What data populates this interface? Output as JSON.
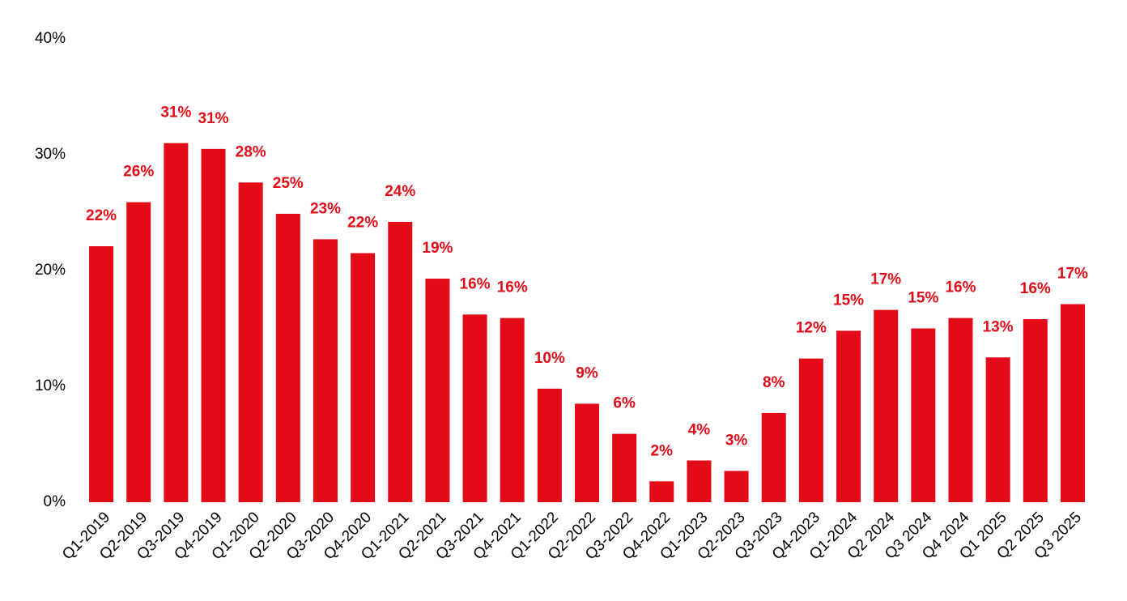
{
  "chart_data": {
    "type": "bar",
    "categories": [
      "Q1-2019",
      "Q2-2019",
      "Q3-2019",
      "Q4-2019",
      "Q1-2020",
      "Q2-2020",
      "Q3-2020",
      "Q4-2020",
      "Q1-2021",
      "Q2-2021",
      "Q3-2021",
      "Q4-2021",
      "Q1-2022",
      "Q2-2022",
      "Q3-2022",
      "Q4-2022",
      "Q1-2023",
      "Q2-2023",
      "Q3-2023",
      "Q4-2023",
      "Q1-2024",
      "Q2 2024",
      "Q3 2024",
      "Q4 2024",
      "Q1 2025",
      "Q2 2025",
      "Q3 2025"
    ],
    "values": [
      22.1,
      25.9,
      31.0,
      30.5,
      27.6,
      24.9,
      22.7,
      21.5,
      24.2,
      19.3,
      16.2,
      15.9,
      9.8,
      8.5,
      5.9,
      1.8,
      3.6,
      2.7,
      7.7,
      12.4,
      14.8,
      16.6,
      15.0,
      15.9,
      12.5,
      15.8,
      17.1
    ],
    "value_labels": [
      "22%",
      "26%",
      "31%",
      "31%",
      "28%",
      "25%",
      "23%",
      "22%",
      "24%",
      "19%",
      "16%",
      "16%",
      "10%",
      "9%",
      "6%",
      "2%",
      "4%",
      "3%",
      "8%",
      "12%",
      "15%",
      "17%",
      "15%",
      "16%",
      "13%",
      "16%",
      "17%"
    ],
    "color": "#e30b17",
    "ylim": [
      0,
      40
    ],
    "yticks": [
      {
        "value": 0,
        "label": "0%"
      },
      {
        "value": 10,
        "label": "10%"
      },
      {
        "value": 20,
        "label": "20%"
      },
      {
        "value": 30,
        "label": "30%"
      },
      {
        "value": 40,
        "label": "40%"
      }
    ],
    "grid": false
  }
}
